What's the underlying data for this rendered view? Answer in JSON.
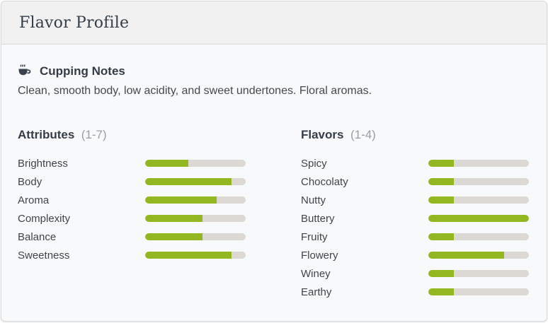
{
  "header": {
    "title": "Flavor Profile"
  },
  "cupping_notes": {
    "icon": "coffee-cup-icon",
    "title": "Cupping Notes",
    "description": "Clean, smooth body, low acidity, and sweet undertones. Floral aromas."
  },
  "colors": {
    "bar_fill": "#92b720",
    "bar_track": "#dcd9d4",
    "header_bg": "#f1f1f2",
    "card_bg": "#f8f9fa",
    "title_text": "#333e48"
  },
  "chart_data": [
    {
      "type": "bar",
      "title": "Attributes",
      "scale_label": "(1-7)",
      "range": [
        1,
        7
      ],
      "orientation": "horizontal",
      "categories": [
        "Brightness",
        "Body",
        "Aroma",
        "Complexity",
        "Balance",
        "Sweetness"
      ],
      "values": [
        3,
        6,
        5,
        4,
        4,
        6
      ]
    },
    {
      "type": "bar",
      "title": "Flavors",
      "scale_label": "(1-4)",
      "range": [
        1,
        4
      ],
      "orientation": "horizontal",
      "categories": [
        "Spicy",
        "Chocolaty",
        "Nutty",
        "Buttery",
        "Fruity",
        "Flowery",
        "Winey",
        "Earthy"
      ],
      "values": [
        1,
        1,
        1,
        4,
        1,
        3,
        1,
        1
      ]
    }
  ]
}
